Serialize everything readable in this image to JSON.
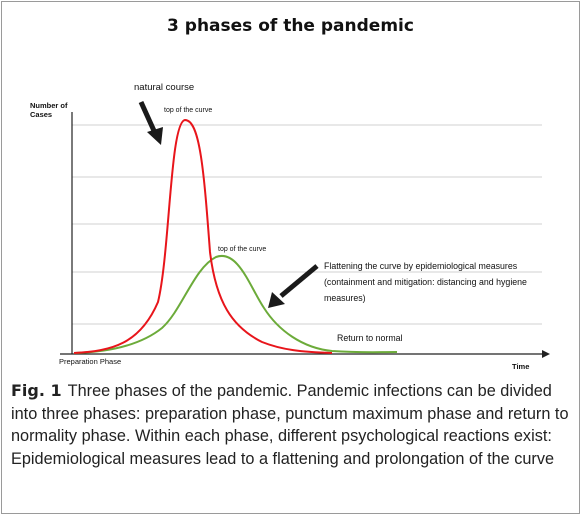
{
  "figure": {
    "title": "3 phases of the pandemic",
    "y_axis_label_line1": "Number of",
    "y_axis_label_line2": "Cases",
    "x_axis_label": "Time",
    "phase_start_label": "Preparation Phase",
    "natural_course_label": "natural course",
    "top_red_label": "top of the curve",
    "top_green_label": "top of the curve",
    "flatten_line1": "Flattening the curve by epidemiological measures",
    "flatten_line2": "(containment and mitigation: distancing and hygiene",
    "flatten_line3": "measures)",
    "return_label": "Return to normal",
    "colors": {
      "natural": "#e8151b",
      "flattened": "#6cab3a",
      "arrow": "#1a1a1a",
      "grid": "#d0d0d0"
    }
  },
  "caption": {
    "label": "Fig. 1",
    "text": "Three phases of the pandemic. Pandemic infections can be divided into three phases: preparation phase, punctum maximum phase and return to normality phase. Within each phase, different psychological reactions exist: Epidemiological measures lead to a flattening and prolongation of the curve"
  }
}
